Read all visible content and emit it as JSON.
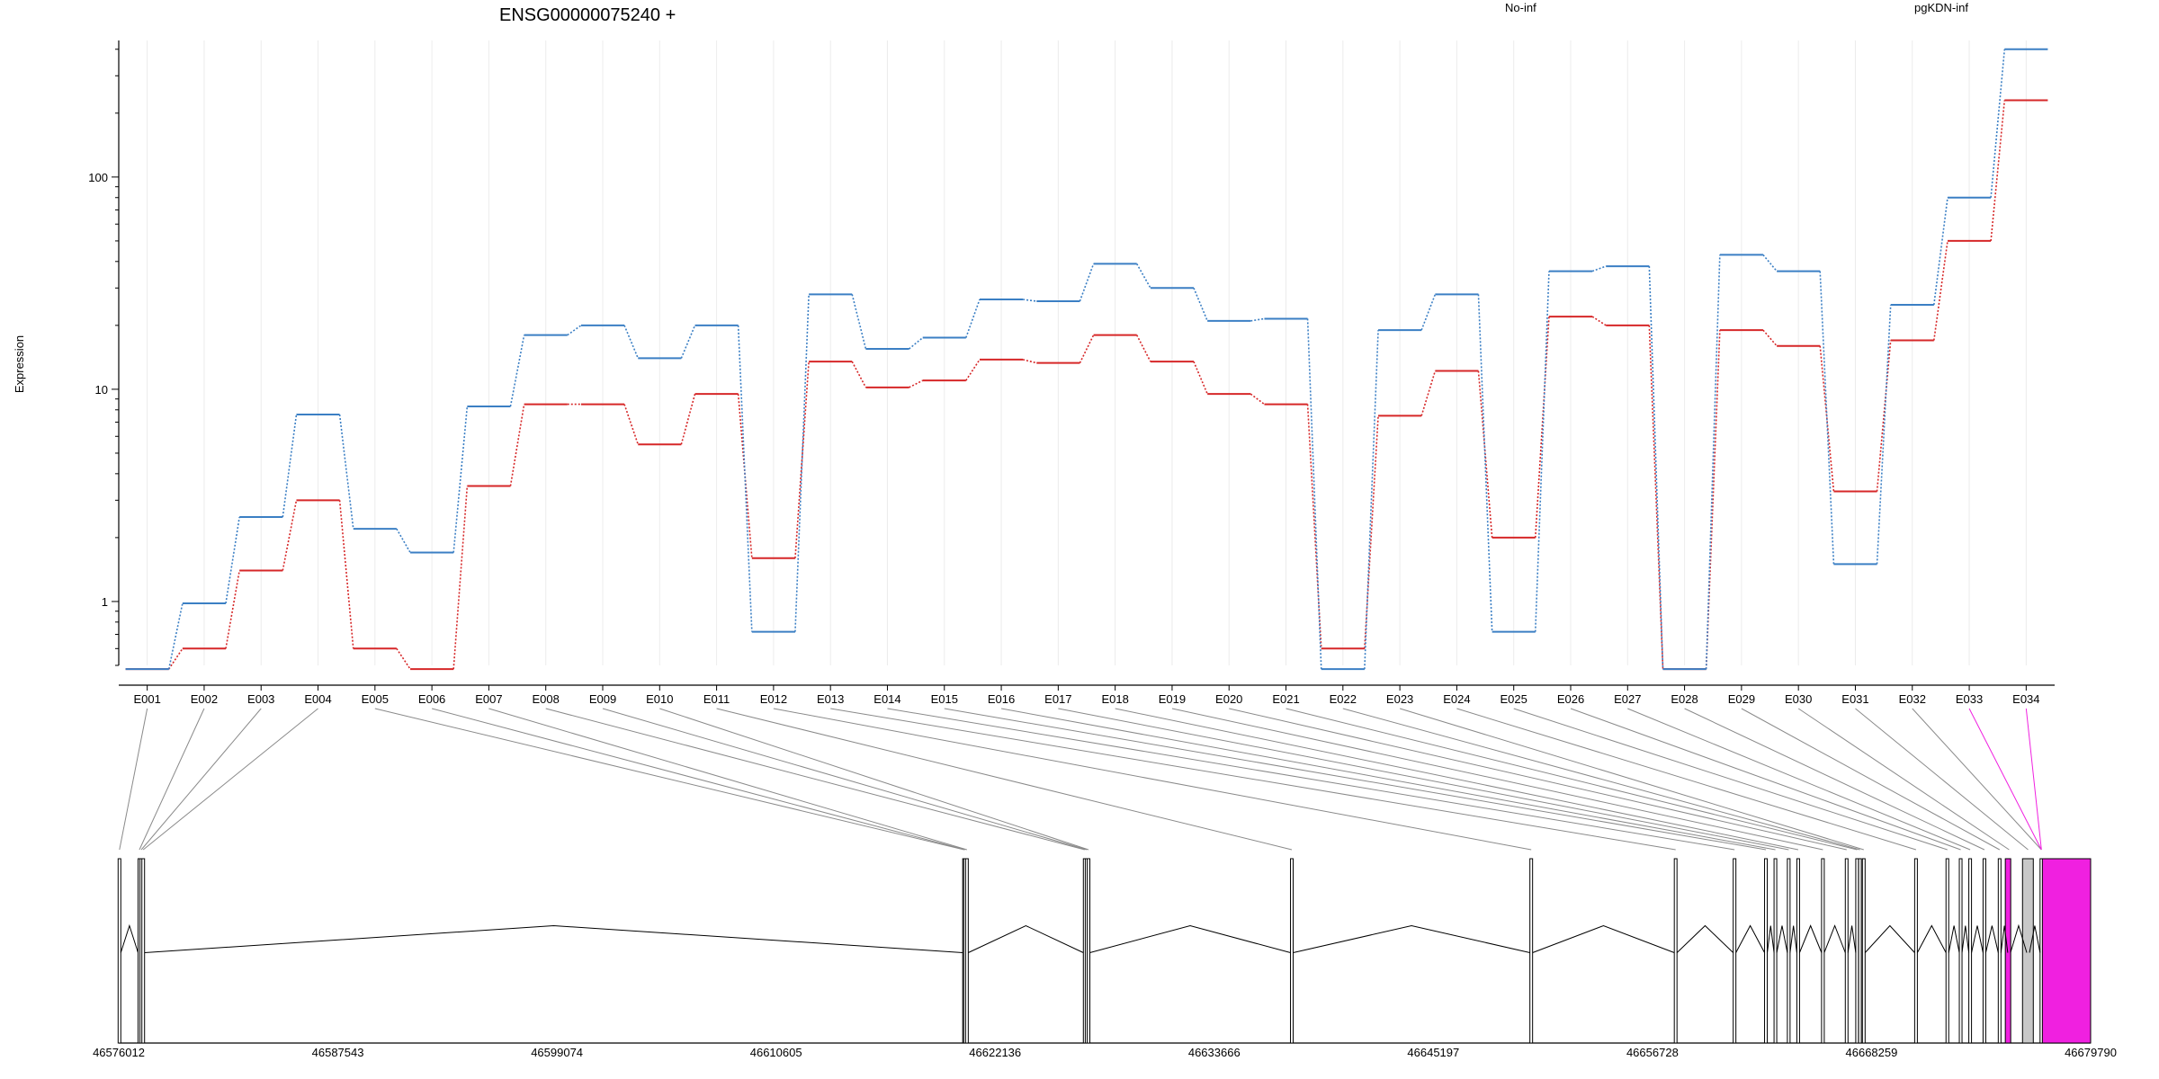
{
  "chart_data": {
    "type": "line",
    "title": "ENSG00000075240 +",
    "ylabel": "Expression",
    "yscale": "log",
    "ylim": [
      0.5,
      440
    ],
    "yticks": [
      1,
      10,
      100
    ],
    "grid": true,
    "categories": [
      "E001",
      "E002",
      "E003",
      "E004",
      "E005",
      "E006",
      "E007",
      "E008",
      "E009",
      "E010",
      "E011",
      "E012",
      "E013",
      "E014",
      "E015",
      "E016",
      "E017",
      "E018",
      "E019",
      "E020",
      "E021",
      "E022",
      "E023",
      "E024",
      "E025",
      "E026",
      "E027",
      "E028",
      "E029",
      "E030",
      "E031",
      "E032",
      "E033",
      "E034"
    ],
    "series": [
      {
        "name": "No-inf",
        "color": "#d62728",
        "values": [
          0.48,
          0.6,
          1.4,
          3.0,
          0.6,
          0.48,
          3.5,
          8.5,
          8.5,
          5.5,
          9.5,
          1.6,
          13.5,
          10.2,
          11,
          13.8,
          13.3,
          18,
          13.5,
          9.5,
          8.5,
          0.6,
          7.5,
          12.2,
          2.0,
          22,
          20,
          0.48,
          19,
          16,
          3.3,
          17,
          50,
          230
        ]
      },
      {
        "name": "pgKDN-inf",
        "color": "#3b7fc4",
        "values": [
          0.48,
          0.98,
          2.5,
          7.6,
          2.2,
          1.7,
          8.3,
          18,
          20,
          14,
          20,
          0.72,
          28,
          15.5,
          17.5,
          26.5,
          26,
          39,
          30,
          21,
          21.5,
          0.48,
          19,
          28,
          0.72,
          36,
          38,
          0.48,
          43,
          36,
          1.5,
          25,
          80,
          400
        ]
      }
    ],
    "legend": "top"
  },
  "gene_model": {
    "coordinate_labels": [
      "46576012",
      "46587543",
      "46599074",
      "46610605",
      "46622136",
      "46633666",
      "46645197",
      "46656728",
      "46668259",
      "46679790"
    ],
    "coord_min": 46576012,
    "coord_max": 46679790,
    "exon_positions": [
      46576050,
      46577100,
      46577200,
      46577300,
      46620500,
      46620550,
      46620650,
      46626850,
      46626950,
      46627050,
      46637750,
      46650350,
      46657950,
      46661050,
      46662700,
      46663200,
      46663900,
      46664400,
      46665700,
      46666950,
      46667500,
      46667650,
      46667850,
      46670600,
      46672250,
      46672950,
      46673450,
      46674200,
      46675000,
      46675500,
      46676500,
      46677200
    ],
    "highlight_color": "#f020e0",
    "unused_exon_color": "#c8c8c8"
  }
}
